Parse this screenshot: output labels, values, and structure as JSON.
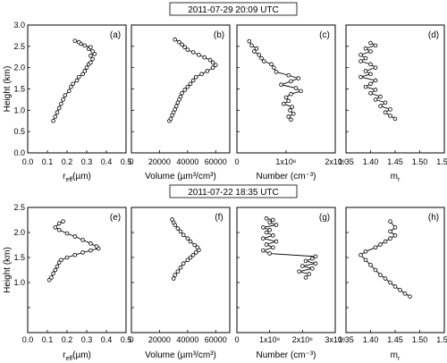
{
  "chart_data": [
    {
      "type": "scatter",
      "letter": "(a)",
      "header": "2011-07-29 20:09 UTC",
      "xlabel": "r_eff (µm)",
      "ylabel": "Height (km)",
      "xlim": [
        0.0,
        0.5
      ],
      "ylim": [
        0.0,
        3.0
      ],
      "xticks": [
        "0.0",
        "0.1",
        "0.2",
        "0.3",
        "0.4",
        "0.5"
      ],
      "yticks": [
        "0.0",
        "0.5",
        "1.0",
        "1.5",
        "2.0",
        "2.5",
        "3.0"
      ],
      "x": [
        0.13,
        0.14,
        0.15,
        0.16,
        0.17,
        0.18,
        0.19,
        0.21,
        0.22,
        0.23,
        0.25,
        0.26,
        0.28,
        0.29,
        0.3,
        0.31,
        0.32,
        0.33,
        0.32,
        0.34,
        0.33,
        0.31,
        0.32,
        0.29,
        0.27,
        0.26,
        0.24
      ],
      "y": [
        0.75,
        0.85,
        0.95,
        1.05,
        1.15,
        1.25,
        1.35,
        1.45,
        1.55,
        1.62,
        1.7,
        1.78,
        1.85,
        1.92,
        2.0,
        2.08,
        2.12,
        2.2,
        2.28,
        2.32,
        2.38,
        2.44,
        2.48,
        2.52,
        2.56,
        2.6,
        2.63
      ]
    },
    {
      "type": "scatter",
      "letter": "(b)",
      "xlabel": "Volume (µm³/cm³)",
      "xlim": [
        0,
        70000
      ],
      "ylim": [
        0.0,
        3.0
      ],
      "xticks": [
        "0",
        "20000",
        "40000",
        "60000"
      ],
      "x": [
        27000,
        28000,
        29000,
        30000,
        31000,
        32000,
        33000,
        34000,
        35000,
        36000,
        38000,
        40000,
        42000,
        44000,
        46000,
        50000,
        54000,
        58000,
        60000,
        58000,
        56000,
        52000,
        48000,
        44000,
        40000,
        38000,
        36000,
        34000,
        31000
      ],
      "y": [
        0.75,
        0.8,
        0.88,
        0.95,
        1.02,
        1.1,
        1.18,
        1.25,
        1.32,
        1.4,
        1.48,
        1.55,
        1.62,
        1.7,
        1.78,
        1.85,
        1.92,
        2.0,
        2.06,
        2.12,
        2.18,
        2.24,
        2.3,
        2.36,
        2.42,
        2.48,
        2.54,
        2.6,
        2.66
      ]
    },
    {
      "type": "scatter",
      "letter": "(c)",
      "xlabel": "Number (cm⁻³)",
      "xlim": [
        0,
        2
      ],
      "ylim": [
        0.0,
        3.0
      ],
      "xticks": [
        "0",
        "1x10⁶",
        "2x10⁶"
      ],
      "x": [
        1.1,
        1.05,
        1.15,
        1.08,
        1.12,
        0.95,
        1.05,
        1.0,
        1.1,
        1.3,
        1.2,
        0.9,
        1.1,
        1.25,
        1.05,
        0.8,
        0.75,
        0.7,
        0.55,
        0.5,
        0.45,
        0.35,
        0.4,
        0.3,
        0.25
      ],
      "y": [
        0.78,
        0.85,
        0.92,
        1.0,
        1.08,
        1.15,
        1.22,
        1.3,
        1.38,
        1.45,
        1.52,
        1.6,
        1.68,
        1.75,
        1.82,
        1.9,
        2.0,
        2.08,
        2.15,
        2.22,
        2.3,
        2.38,
        2.45,
        2.52,
        2.62
      ]
    },
    {
      "type": "scatter",
      "letter": "(d)",
      "xlabel": "m_r",
      "xlim": [
        1.35,
        1.55
      ],
      "ylim": [
        0.0,
        3.0
      ],
      "xticks": [
        "1.35",
        "1.40",
        "1.45",
        "1.50",
        "1.55"
      ],
      "x": [
        1.45,
        1.44,
        1.43,
        1.44,
        1.42,
        1.43,
        1.41,
        1.42,
        1.4,
        1.41,
        1.39,
        1.4,
        1.41,
        1.38,
        1.4,
        1.39,
        1.41,
        1.4,
        1.38,
        1.39,
        1.38,
        1.4,
        1.39,
        1.41,
        1.4
      ],
      "y": [
        0.8,
        0.87,
        0.95,
        1.02,
        1.1,
        1.18,
        1.25,
        1.32,
        1.4,
        1.48,
        1.55,
        1.62,
        1.7,
        1.78,
        1.85,
        1.92,
        2.0,
        2.08,
        2.15,
        2.22,
        2.3,
        2.38,
        2.45,
        2.52,
        2.58
      ]
    },
    {
      "type": "scatter",
      "letter": "(e)",
      "header": "2011-07-22 18:35 UTC",
      "xlabel": "r_eff (µm)",
      "ylabel": "Height (km)",
      "xlim": [
        0.0,
        0.5
      ],
      "ylim": [
        0.0,
        2.5
      ],
      "xticks": [
        "0.0",
        "0.1",
        "0.2",
        "0.3",
        "0.4",
        "0.5"
      ],
      "yticks": [
        "1.0",
        "1.5",
        "2.0",
        "2.5"
      ],
      "x": [
        0.11,
        0.12,
        0.13,
        0.14,
        0.15,
        0.16,
        0.17,
        0.2,
        0.24,
        0.28,
        0.32,
        0.36,
        0.35,
        0.32,
        0.28,
        0.24,
        0.2,
        0.16,
        0.14,
        0.16,
        0.18
      ],
      "y": [
        1.05,
        1.1,
        1.18,
        1.25,
        1.32,
        1.4,
        1.45,
        1.5,
        1.55,
        1.6,
        1.64,
        1.68,
        1.72,
        1.78,
        1.85,
        1.92,
        1.98,
        2.05,
        2.1,
        2.18,
        2.22
      ]
    },
    {
      "type": "scatter",
      "letter": "(f)",
      "xlabel": "Volume (µm³/cm³)",
      "xlim": [
        0,
        70000
      ],
      "ylim": [
        0.0,
        2.5
      ],
      "xticks": [
        "0",
        "20000",
        "40000",
        "60000"
      ],
      "x": [
        30000,
        31000,
        33000,
        35000,
        37000,
        40000,
        42000,
        44000,
        46000,
        48000,
        47000,
        45000,
        42000,
        40000,
        37000,
        35000,
        33000,
        31000,
        30000,
        29000
      ],
      "y": [
        1.08,
        1.15,
        1.22,
        1.3,
        1.38,
        1.45,
        1.5,
        1.55,
        1.6,
        1.65,
        1.7,
        1.75,
        1.82,
        1.88,
        1.95,
        2.02,
        2.08,
        2.15,
        2.2,
        2.26
      ]
    },
    {
      "type": "scatter",
      "letter": "(g)",
      "xlabel": "Number (cm⁻³)",
      "xlim": [
        0,
        3
      ],
      "ylim": [
        0.0,
        2.5
      ],
      "xticks": [
        "0",
        "1x10⁶",
        "2x10⁶",
        "3x10⁶"
      ],
      "x": [
        2.1,
        2.2,
        1.9,
        2.3,
        2.0,
        2.4,
        2.1,
        2.3,
        2.4,
        1.0,
        0.8,
        1.1,
        0.9,
        1.2,
        0.8,
        1.1,
        0.9,
        1.0,
        0.8,
        1.2,
        1.0,
        1.1,
        0.9
      ],
      "y": [
        1.1,
        1.17,
        1.22,
        1.28,
        1.33,
        1.38,
        1.43,
        1.48,
        1.52,
        1.58,
        1.64,
        1.7,
        1.76,
        1.82,
        1.88,
        1.94,
        2.0,
        2.05,
        2.1,
        2.15,
        2.2,
        2.25,
        2.28
      ]
    },
    {
      "type": "scatter",
      "letter": "(h)",
      "xlabel": "m_r",
      "xlim": [
        1.35,
        1.55
      ],
      "ylim": [
        0.0,
        2.5
      ],
      "xticks": [
        "1.35",
        "1.40",
        "1.45",
        "1.50",
        "1.55"
      ],
      "x": [
        1.48,
        1.47,
        1.46,
        1.45,
        1.44,
        1.43,
        1.42,
        1.41,
        1.4,
        1.39,
        1.38,
        1.39,
        1.41,
        1.42,
        1.43,
        1.44,
        1.45,
        1.44,
        1.45,
        1.44
      ],
      "y": [
        0.72,
        0.78,
        0.85,
        0.92,
        1.0,
        1.08,
        1.15,
        1.25,
        1.35,
        1.45,
        1.55,
        1.62,
        1.7,
        1.76,
        1.82,
        1.88,
        1.94,
        2.02,
        2.1,
        2.22
      ]
    }
  ],
  "figure_labels": {
    "reff_sub": "eff",
    "reff_r": "r",
    "reff_unit": "(µm)",
    "volume": "Volume (µm³/cm³)",
    "number": "Number (cm⁻³)",
    "mr_m": "m",
    "mr_sub": "r",
    "height": "Height (km)"
  },
  "colors": {
    "marker": "#000000",
    "axis": "#000000"
  }
}
